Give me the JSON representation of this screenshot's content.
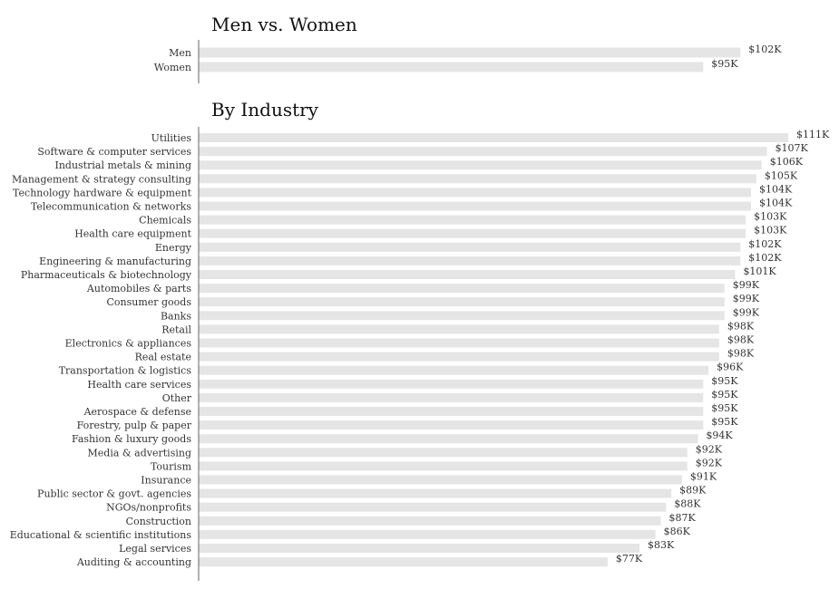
{
  "chart_data": [
    {
      "type": "bar",
      "orientation": "horizontal",
      "title": "Men vs. Women",
      "categories": [
        "Men",
        "Women"
      ],
      "values": [
        102,
        95
      ],
      "labels": [
        "$102K",
        "$95K"
      ],
      "xlim": [
        0,
        111
      ]
    },
    {
      "type": "bar",
      "orientation": "horizontal",
      "title": "By Industry",
      "categories": [
        "Utilities",
        "Software & computer services",
        "Industrial metals & mining",
        "Management & strategy consulting",
        "Technology hardware & equipment",
        "Telecommunication & networks",
        "Chemicals",
        "Health care equipment",
        "Energy",
        "Engineering & manufacturing",
        "Pharmaceuticals & biotechnology",
        "Automobiles & parts",
        "Consumer goods",
        "Banks",
        "Retail",
        "Electronics & appliances",
        "Real estate",
        "Transportation & logistics",
        "Health care services",
        "Other",
        "Aerospace & defense",
        "Forestry, pulp & paper",
        "Fashion & luxury goods",
        "Media & advertising",
        "Tourism",
        "Insurance",
        "Public sector & govt. agencies",
        "NGOs/nonprofits",
        "Construction",
        "Educational & scientific institutions",
        "Legal services",
        "Auditing & accounting"
      ],
      "values": [
        111,
        107,
        106,
        105,
        104,
        104,
        103,
        103,
        102,
        102,
        101,
        99,
        99,
        99,
        98,
        98,
        98,
        96,
        95,
        95,
        95,
        95,
        94,
        92,
        92,
        91,
        89,
        88,
        87,
        86,
        83,
        77
      ],
      "labels": [
        "$111K",
        "$107K",
        "$106K",
        "$105K",
        "$104K",
        "$104K",
        "$103K",
        "$103K",
        "$102K",
        "$102K",
        "$101K",
        "$99K",
        "$99K",
        "$99K",
        "$98K",
        "$98K",
        "$98K",
        "$96K",
        "$95K",
        "$95K",
        "$95K",
        "$95K",
        "$94K",
        "$92K",
        "$92K",
        "$91K",
        "$89K",
        "$88K",
        "$87K",
        "$86K",
        "$83K",
        "$77K"
      ],
      "xlim": [
        0,
        111
      ]
    }
  ]
}
